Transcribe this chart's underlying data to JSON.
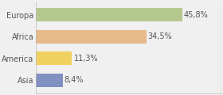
{
  "categories": [
    "Europa",
    "Africa",
    "America",
    "Asia"
  ],
  "values": [
    45.8,
    34.5,
    11.3,
    8.4
  ],
  "labels": [
    "45,8%",
    "34,5%",
    "11,3%",
    "8,4%"
  ],
  "bar_colors": [
    "#b5c98e",
    "#e8b98a",
    "#f0d060",
    "#8090c0"
  ],
  "background_color": "#f0f0f0",
  "xlim": [
    0,
    58
  ],
  "bar_height": 0.62,
  "label_fontsize": 7.0,
  "category_fontsize": 7.0,
  "text_color": "#555555",
  "figsize": [
    2.8,
    1.2
  ],
  "dpi": 100
}
